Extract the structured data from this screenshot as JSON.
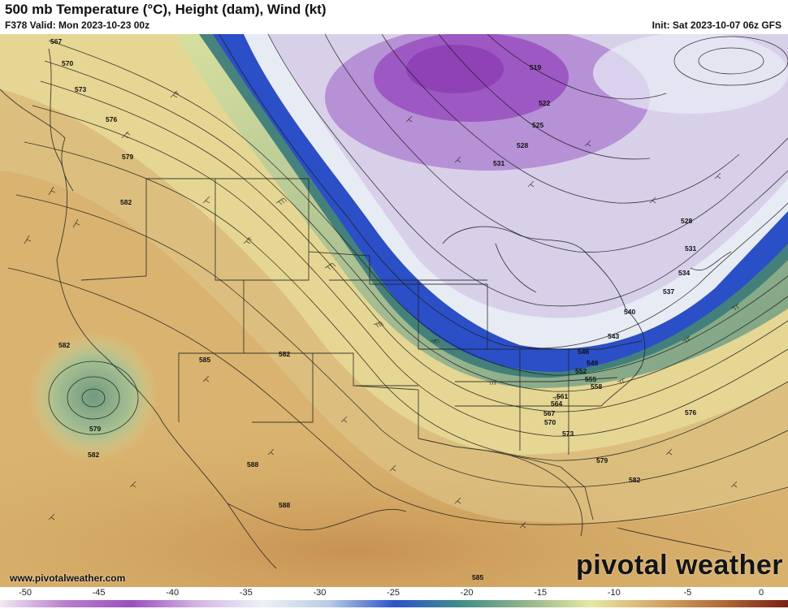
{
  "header": {
    "title": "500 mb Temperature (°C), Height (dam), Wind (kt)",
    "valid": "F378 Valid: Mon 2023-10-23 00z",
    "init": "Init: Sat 2023-10-07 06z GFS"
  },
  "watermark": {
    "brand": "pivotal weather",
    "website": "www.pivotalweather.com"
  },
  "colorbar": {
    "ticks": [
      "-50",
      "-45",
      "-40",
      "-35",
      "-30",
      "-25",
      "-20",
      "-15",
      "-10",
      "-5",
      "0"
    ],
    "colors": [
      "#f2e9f3",
      "#b87fcd",
      "#9b4ec0",
      "#d3b6e2",
      "#eef1f7",
      "#b9cde3",
      "#2f53c8",
      "#3f8d8a",
      "#93b48a",
      "#e6e8a4",
      "#d5a867",
      "#b06a35",
      "#7a1f14"
    ]
  },
  "map": {
    "height_labels": [
      "567",
      "570",
      "573",
      "576",
      "579",
      "582",
      "582",
      "582",
      "579",
      "582",
      "585",
      "582",
      "588",
      "588",
      "585",
      "519",
      "522",
      "525",
      "528",
      "531",
      "528",
      "531",
      "534",
      "537",
      "540",
      "543",
      "546",
      "549",
      "552",
      "555",
      "558",
      "561",
      "564",
      "567",
      "570",
      "573",
      "576",
      "579",
      "582"
    ]
  }
}
